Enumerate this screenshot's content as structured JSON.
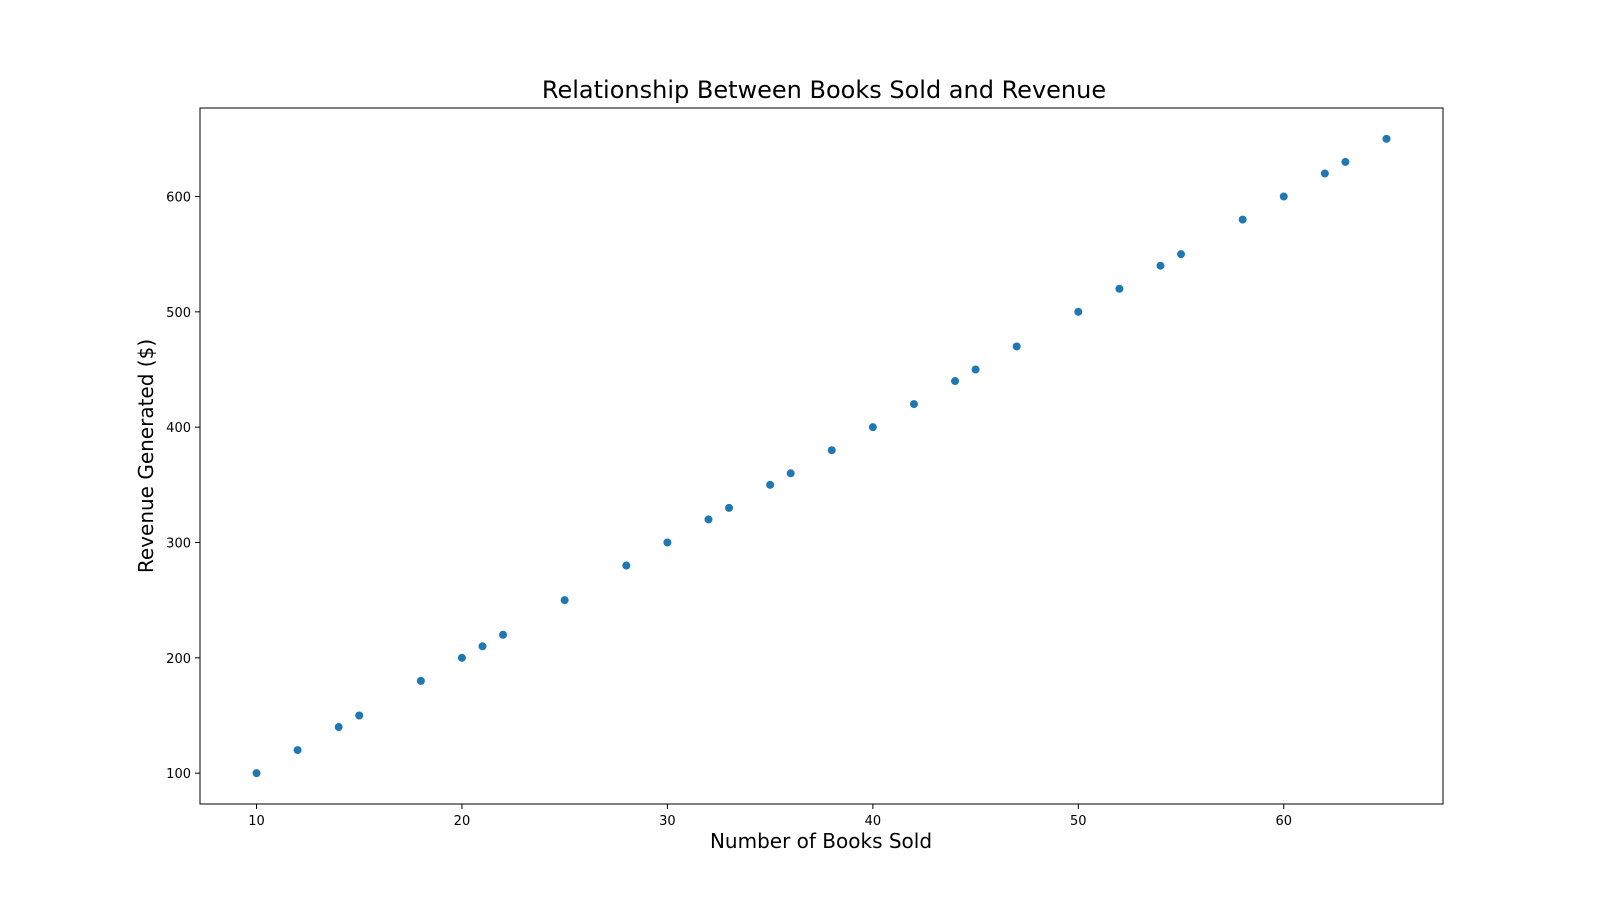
{
  "chart_data": {
    "type": "scatter",
    "title": "Relationship Between Books Sold and Revenue",
    "xlabel": "Number of Books Sold",
    "ylabel": "Revenue Generated ($)",
    "xlim": [
      7.25,
      67.75
    ],
    "ylim": [
      73.25,
      676.75
    ],
    "xticks": [
      10,
      20,
      30,
      40,
      50,
      60
    ],
    "yticks": [
      100,
      200,
      300,
      400,
      500,
      600
    ],
    "grid": false,
    "series": [
      {
        "color": "#1f77b4",
        "points": [
          {
            "x": 10,
            "y": 100
          },
          {
            "x": 12,
            "y": 120
          },
          {
            "x": 14,
            "y": 140
          },
          {
            "x": 15,
            "y": 150
          },
          {
            "x": 18,
            "y": 180
          },
          {
            "x": 20,
            "y": 200
          },
          {
            "x": 21,
            "y": 210
          },
          {
            "x": 22,
            "y": 220
          },
          {
            "x": 25,
            "y": 250
          },
          {
            "x": 28,
            "y": 280
          },
          {
            "x": 30,
            "y": 300
          },
          {
            "x": 32,
            "y": 320
          },
          {
            "x": 33,
            "y": 330
          },
          {
            "x": 35,
            "y": 350
          },
          {
            "x": 36,
            "y": 360
          },
          {
            "x": 38,
            "y": 380
          },
          {
            "x": 40,
            "y": 400
          },
          {
            "x": 42,
            "y": 420
          },
          {
            "x": 44,
            "y": 440
          },
          {
            "x": 45,
            "y": 450
          },
          {
            "x": 47,
            "y": 470
          },
          {
            "x": 50,
            "y": 500
          },
          {
            "x": 52,
            "y": 520
          },
          {
            "x": 54,
            "y": 540
          },
          {
            "x": 55,
            "y": 550
          },
          {
            "x": 58,
            "y": 580
          },
          {
            "x": 60,
            "y": 600
          },
          {
            "x": 62,
            "y": 620
          },
          {
            "x": 63,
            "y": 630
          },
          {
            "x": 65,
            "y": 650
          }
        ]
      }
    ]
  }
}
